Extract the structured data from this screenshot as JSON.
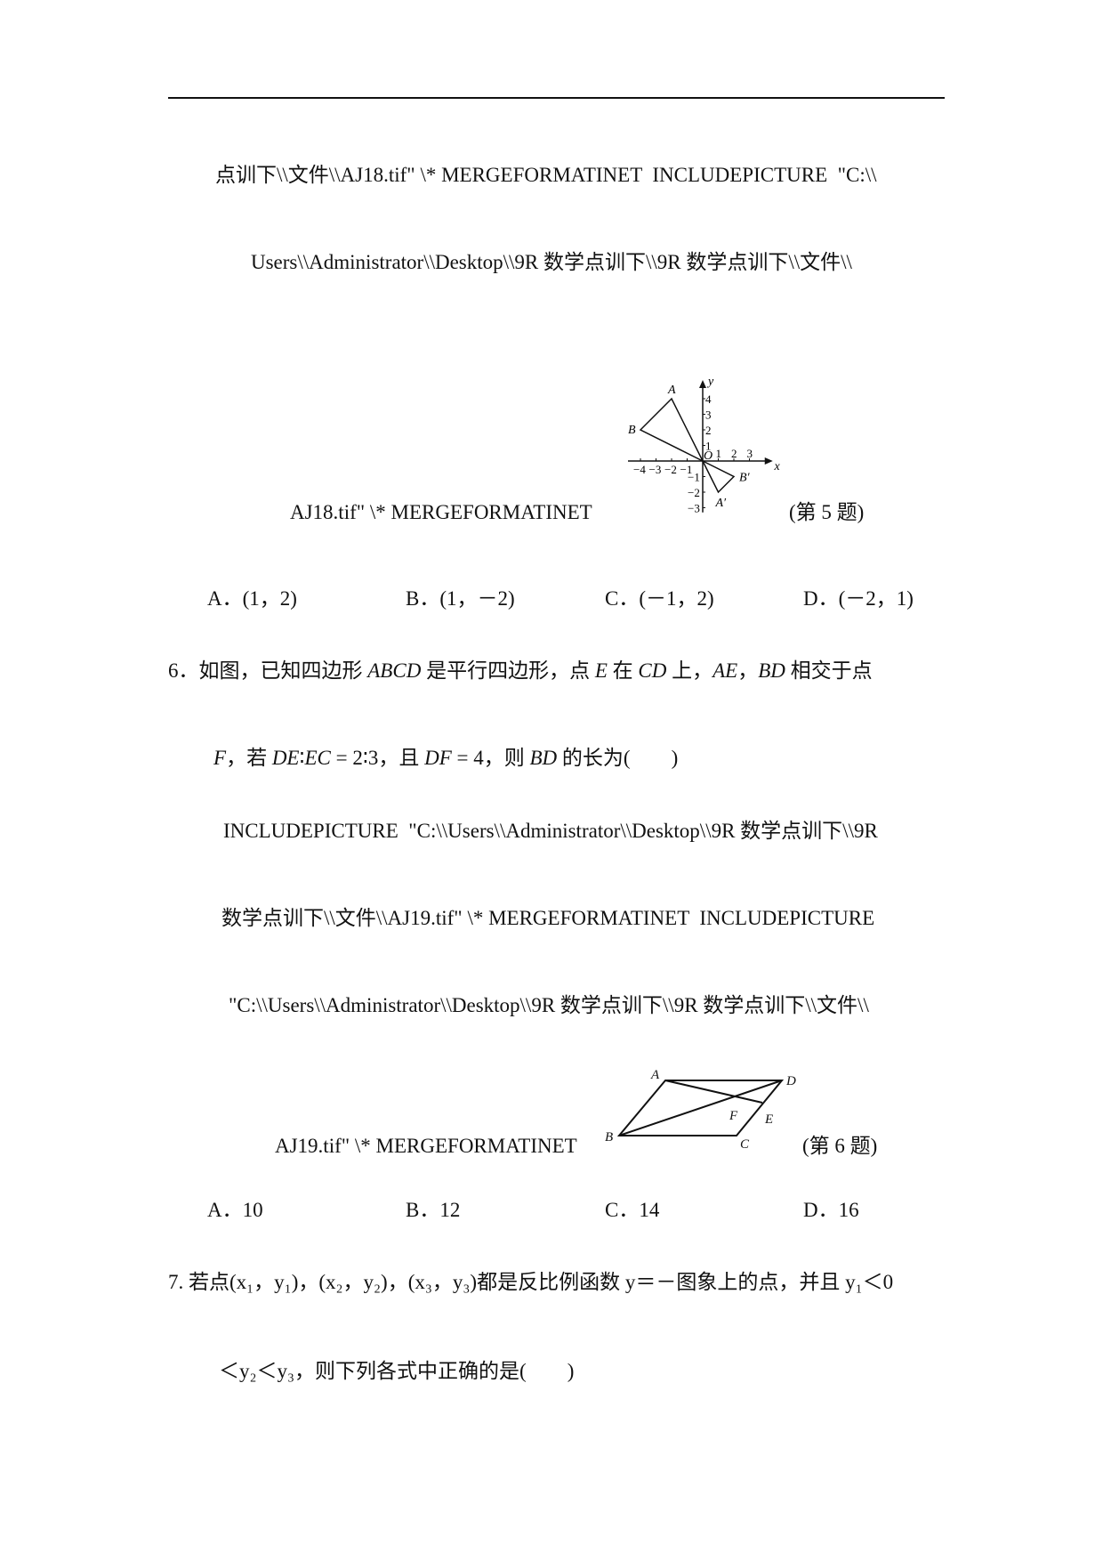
{
  "lines": {
    "l1": "点训下\\\\文件\\\\AJ18.tif\" \\* MERGEFORMATINET  INCLUDEPICTURE  \"C:\\\\",
    "l2": "Users\\\\Administrator\\\\Desktop\\\\9R 数学点训下\\\\9R 数学点训下\\\\文件\\\\",
    "l3": "AJ18.tif\" \\* MERGEFORMATINET",
    "fig5_caption": "(第 5 题)"
  },
  "q5_options": [
    "A．(1，2)",
    "B．(1，－2)",
    "C．(－1，2)",
    "D．(－2，1)"
  ],
  "fig5": {
    "points": {
      "A": [
        -2,
        4
      ],
      "B": [
        -4,
        2
      ],
      "A'": [
        1,
        -2
      ],
      "B'": [
        2,
        -1
      ],
      "O": [
        0,
        0
      ]
    },
    "x_ticks": [
      "−4",
      "−3",
      "−2",
      "−1",
      "1",
      "2",
      "3"
    ],
    "y_ticks": [
      "4",
      "3",
      "2",
      "1",
      "−1",
      "−2",
      "−3"
    ],
    "x_label": "x",
    "y_label": "y",
    "origin_label": "O"
  },
  "q6": {
    "line1_prefix": "6．如图，已知四边形 ",
    "abcd": "ABCD",
    "mid1": " 是平行四边形，点 ",
    "e": "E",
    "mid2": " 在 ",
    "cd": "CD",
    "mid3": " 上，",
    "ae": "AE",
    "mid4": "，",
    "bd": "BD",
    "end1": " 相交于点",
    "f": "F",
    "l2a": "，若 ",
    "de": "DE",
    "colon": "∶",
    "ec": "EC",
    "l2b": " = 2∶3，且 ",
    "df": "DF",
    "l2c": " = 4，则 ",
    "bd2": "BD",
    "l2d": " 的长为(　　)",
    "path1": "INCLUDEPICTURE  \"C:\\\\Users\\\\Administrator\\\\Desktop\\\\9R 数学点训下\\\\9R",
    "path2": "数学点训下\\\\文件\\\\AJ19.tif\" \\* MERGEFORMATINET  INCLUDEPICTURE",
    "path3": "\"C:\\\\Users\\\\Administrator\\\\Desktop\\\\9R 数学点训下\\\\9R 数学点训下\\\\文件\\\\",
    "path4": "AJ19.tif\" \\* MERGEFORMATINET",
    "fig_caption": "(第 6 题)",
    "fig_labels": {
      "A": "A",
      "B": "B",
      "C": "C",
      "D": "D",
      "E": "E",
      "F": "F"
    },
    "options": [
      "A．10",
      "B．12",
      "C．14",
      "D．16"
    ]
  },
  "q7": {
    "line1": "7. 若点(x₁，y₁)，(x₂，y₂)，(x₃，y₃)都是反比例函数 y＝－图象上的点，并且 y₁＜0",
    "line2": "＜y₂＜y₃，则下列各式中正确的是(　　)"
  }
}
